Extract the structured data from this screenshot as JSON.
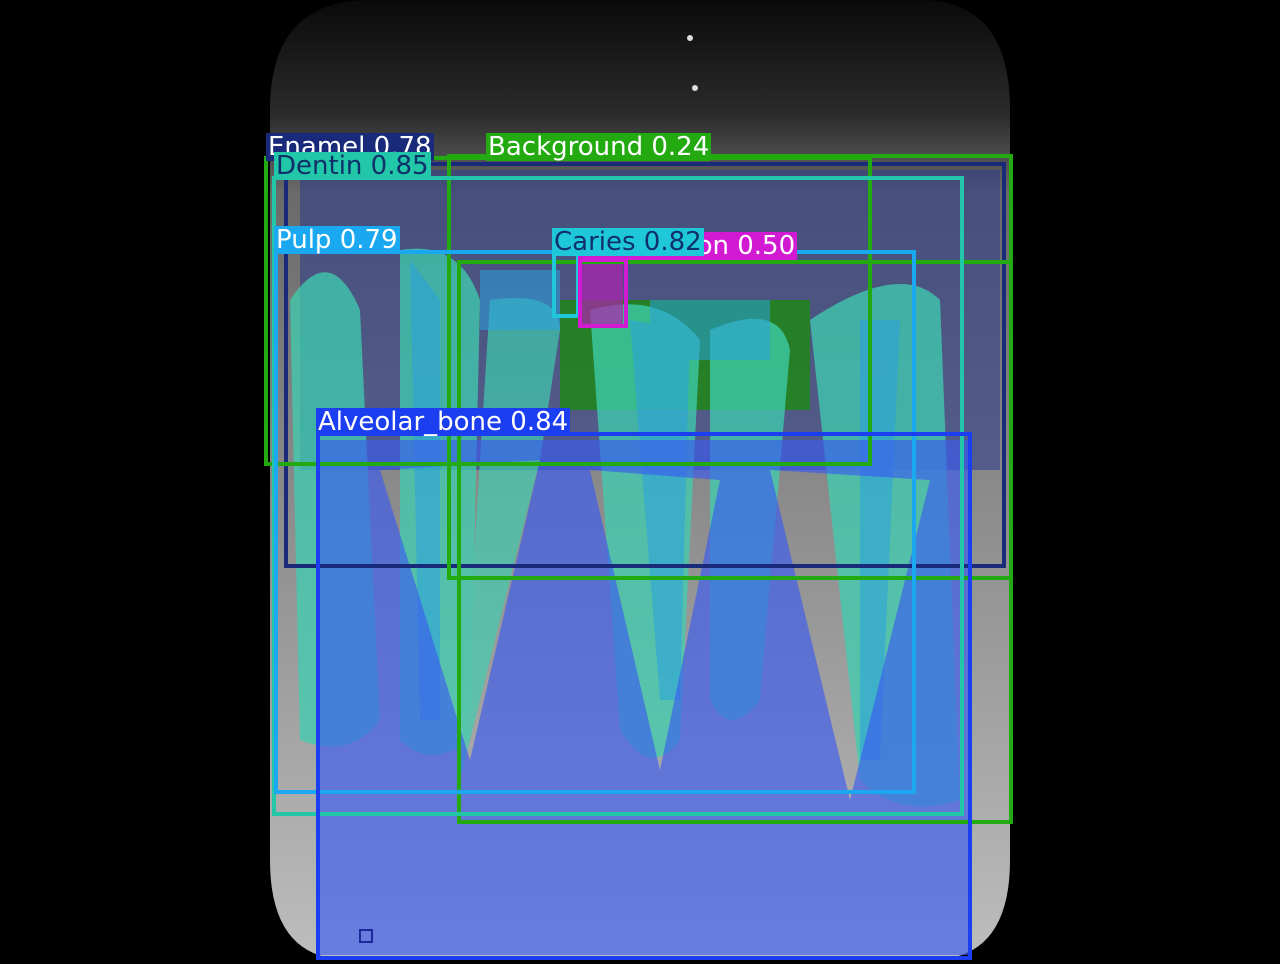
{
  "image": {
    "description_icon": "dental-xray-photo",
    "background_color": "#000000"
  },
  "detections": [
    {
      "id": "enamel",
      "label": "Enamel 0.78",
      "color": "#1a2a7a",
      "text_color": "#ffffff"
    },
    {
      "id": "background",
      "label": "Background 0.24",
      "color": "#22aa10",
      "text_color": "#ffffff"
    },
    {
      "id": "dentin",
      "label": "Dentin 0.85",
      "color": "#21c7a8",
      "text_color": "#10306a"
    },
    {
      "id": "pulp",
      "label": "Pulp 0.79",
      "color": "#1aa8f0",
      "text_color": "#ffffff"
    },
    {
      "id": "caries",
      "label": "Caries 0.82",
      "color": "#1ec8d8",
      "text_color": "#10306a"
    },
    {
      "id": "restoration",
      "label": "Restoration 0.50",
      "color": "#d21ad2",
      "text_color": "#ffffff"
    },
    {
      "id": "alveolar",
      "label": "Alveolar_bone 0.84",
      "color": "#1a3ef0",
      "text_color": "#ffffff"
    }
  ]
}
